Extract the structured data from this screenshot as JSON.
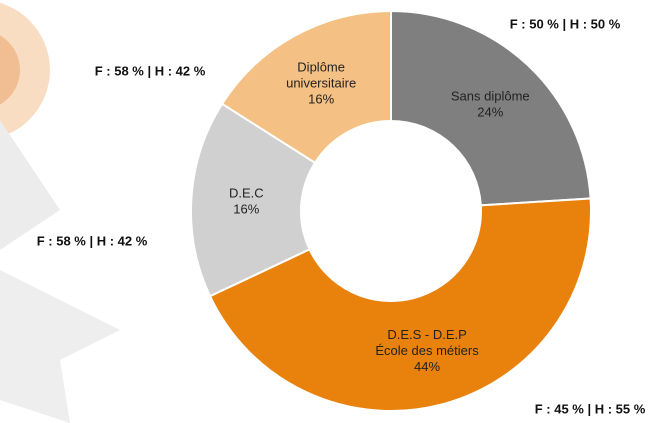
{
  "chart_data": {
    "type": "donut",
    "categories": [
      [
        "Sans diplôme"
      ],
      [
        "D.E.S - D.E.P",
        "École des métiers"
      ],
      [
        "D.E.C"
      ],
      [
        "Diplôme",
        "universitaire"
      ]
    ],
    "values": [
      24,
      44,
      16,
      16
    ],
    "value_labels": [
      "24%",
      "44%",
      "16%",
      "16%"
    ],
    "colors": [
      "#7f7f7f",
      "#e8820c",
      "#d0d0d0",
      "#f5c083"
    ],
    "annotations": [
      "F : 50 % | H : 50 %",
      "F : 45 % | H : 55 %",
      "F : 58 % | H : 42 %",
      "F : 58 % | H : 42 %"
    ]
  }
}
